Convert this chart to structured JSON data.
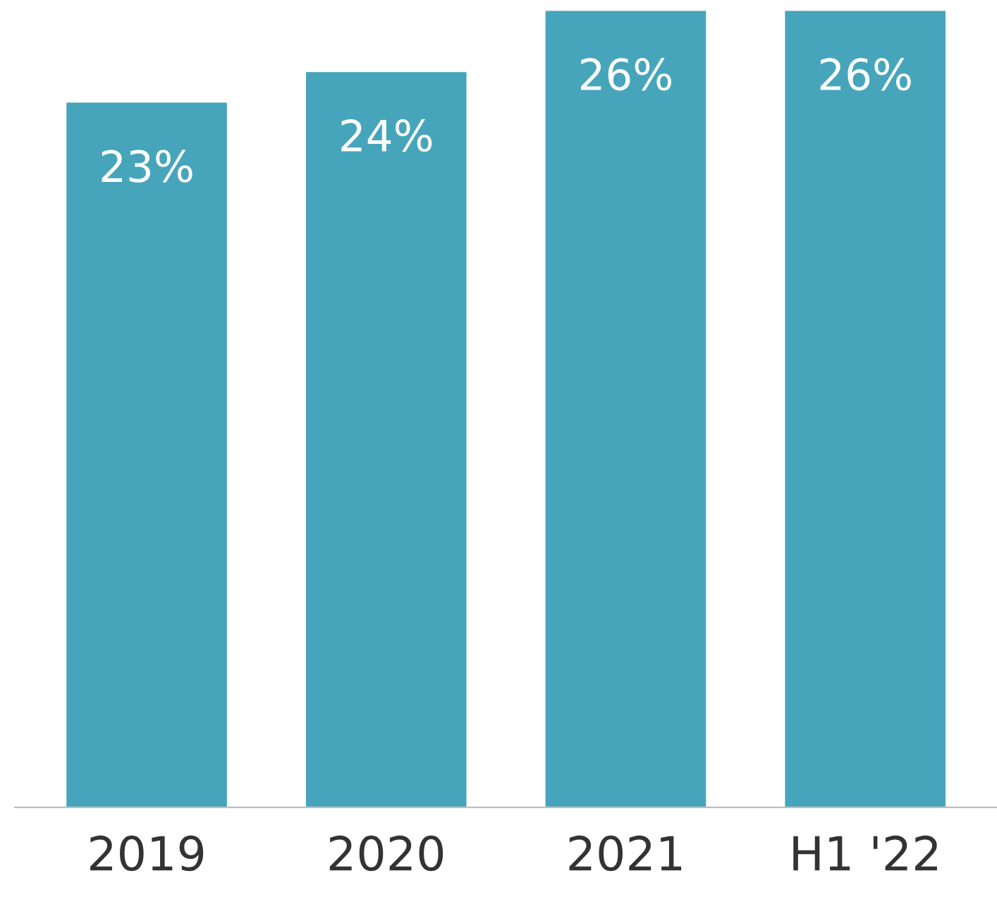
{
  "chart_data": {
    "type": "bar",
    "categories": [
      "2019",
      "2020",
      "2021",
      "H1 '22"
    ],
    "values": [
      23,
      24,
      26,
      26
    ],
    "color": "#46a5ba",
    "data_labels": true,
    "value_labels": [
      "23%",
      "24%",
      "26%",
      "26%"
    ],
    "grid": false,
    "legend": false
  }
}
